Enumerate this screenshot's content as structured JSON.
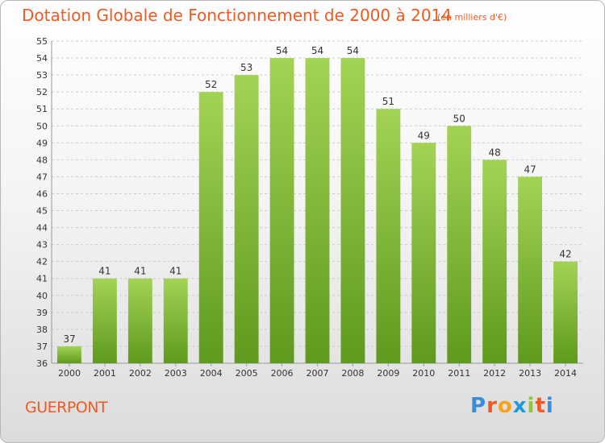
{
  "title": "Dotation Globale de Fonctionnement de 2000 à 2014",
  "subtitle": "(en milliers d'€)",
  "commune": "GUERPONT",
  "logo": {
    "text": "Proxiti",
    "letter_colors": [
      "#3c8dd9",
      "#f05a22",
      "#f7a21b",
      "#1f9bd7",
      "#8dc63f",
      "#f05a22",
      "#3c8dd9"
    ]
  },
  "colors": {
    "bar_light": "#a3d355",
    "bar_dark": "#5e9a1d",
    "text_accent": "#f05a22",
    "grid": "#cccccc",
    "axis_text": "#333333"
  },
  "chart_data": {
    "type": "bar",
    "title": "Dotation Globale de Fonctionnement de 2000 à 2014",
    "subtitle": "(en milliers d'€)",
    "categories": [
      "2000",
      "2001",
      "2002",
      "2003",
      "2004",
      "2005",
      "2006",
      "2007",
      "2008",
      "2009",
      "2010",
      "2011",
      "2012",
      "2013",
      "2014"
    ],
    "values": [
      37,
      41,
      41,
      41,
      52,
      53,
      54,
      54,
      54,
      51,
      49,
      50,
      48,
      47,
      42
    ],
    "ylim": [
      36,
      55
    ],
    "yticks": [
      36,
      37,
      38,
      39,
      40,
      41,
      42,
      43,
      44,
      45,
      46,
      47,
      48,
      49,
      50,
      51,
      52,
      53,
      54,
      55
    ],
    "grid": true,
    "legend": "none",
    "xlabel": "",
    "ylabel": ""
  }
}
